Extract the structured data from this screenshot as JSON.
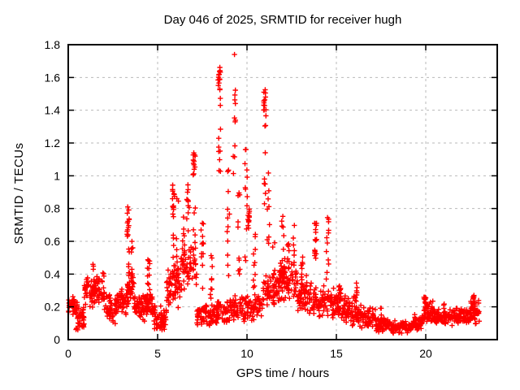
{
  "chart_data": {
    "type": "scatter",
    "title": "Day 046 of 2025, SRMTID for receiver hugh",
    "xlabel": "GPS time / hours",
    "ylabel": "SRMTID / TECUs",
    "xlim": [
      0,
      24
    ],
    "ylim": [
      0,
      1.8
    ],
    "xticks": {
      "values": [
        0,
        5,
        10,
        15,
        20
      ],
      "labels": [
        "0",
        "5",
        "10",
        "15",
        "20"
      ]
    },
    "yticks": {
      "values": [
        0,
        0.2,
        0.4,
        0.6,
        0.8,
        1.0,
        1.2,
        1.4,
        1.6,
        1.8
      ],
      "labels": [
        "0",
        "0.2",
        "0.4",
        "0.6",
        "0.8",
        "1",
        "1.2",
        "1.4",
        "1.6",
        "1.8"
      ]
    },
    "grid": true,
    "legend": "none",
    "marker": "plus",
    "colors": {
      "marker": "#ff0000",
      "grid": "#b9b9b9",
      "axis": "#000000",
      "background": "#ffffff",
      "text": "#000000"
    },
    "max_point": {
      "x": 9.3,
      "y": 1.74
    },
    "data_span_hours": [
      0,
      23.0
    ],
    "seed": 46,
    "baseline_segments": [
      [
        0.0,
        0.5,
        0.12,
        0.3,
        40
      ],
      [
        0.4,
        0.9,
        0.05,
        0.2,
        40
      ],
      [
        0.9,
        2.0,
        0.18,
        0.42,
        90
      ],
      [
        2.0,
        2.7,
        0.08,
        0.3,
        55
      ],
      [
        2.7,
        3.3,
        0.15,
        0.33,
        50
      ],
      [
        3.3,
        3.7,
        0.2,
        0.43,
        30
      ],
      [
        3.7,
        4.3,
        0.1,
        0.3,
        50
      ],
      [
        4.3,
        4.8,
        0.12,
        0.3,
        40
      ],
      [
        4.8,
        5.5,
        0.04,
        0.22,
        55
      ],
      [
        5.5,
        6.3,
        0.15,
        0.5,
        60
      ],
      [
        6.3,
        7.2,
        0.3,
        0.6,
        50
      ],
      [
        7.2,
        8.2,
        0.08,
        0.22,
        70
      ],
      [
        8.2,
        9.0,
        0.08,
        0.25,
        50
      ],
      [
        9.0,
        10.0,
        0.1,
        0.28,
        60
      ],
      [
        10.0,
        10.9,
        0.1,
        0.3,
        55
      ],
      [
        10.9,
        11.8,
        0.18,
        0.42,
        60
      ],
      [
        11.8,
        12.8,
        0.2,
        0.5,
        75
      ],
      [
        12.8,
        13.6,
        0.15,
        0.4,
        60
      ],
      [
        13.6,
        14.4,
        0.12,
        0.35,
        55
      ],
      [
        14.4,
        15.3,
        0.12,
        0.32,
        60
      ],
      [
        15.3,
        16.2,
        0.08,
        0.3,
        60
      ],
      [
        16.2,
        17.2,
        0.06,
        0.22,
        65
      ],
      [
        17.2,
        18.0,
        0.04,
        0.15,
        60
      ],
      [
        18.0,
        19.3,
        0.03,
        0.12,
        85
      ],
      [
        19.3,
        19.9,
        0.05,
        0.16,
        45
      ],
      [
        19.9,
        20.5,
        0.1,
        0.25,
        50
      ],
      [
        20.5,
        21.5,
        0.08,
        0.2,
        65
      ],
      [
        21.5,
        22.5,
        0.08,
        0.2,
        65
      ],
      [
        22.5,
        23.0,
        0.08,
        0.25,
        40
      ]
    ],
    "streaks": [
      [
        1.4,
        0.28,
        0.47,
        10,
        0
      ],
      [
        3.35,
        0.58,
        0.81,
        14,
        0
      ],
      [
        3.35,
        0.3,
        0.58,
        8,
        0
      ],
      [
        3.55,
        0.3,
        0.62,
        8,
        0
      ],
      [
        4.5,
        0.3,
        0.5,
        12,
        0
      ],
      [
        5.9,
        0.8,
        0.95,
        12,
        0
      ],
      [
        5.9,
        0.35,
        0.8,
        10,
        0
      ],
      [
        6.1,
        0.3,
        0.88,
        10,
        0
      ],
      [
        6.45,
        0.45,
        0.75,
        12,
        0
      ],
      [
        6.7,
        0.55,
        0.97,
        12,
        0
      ],
      [
        7.05,
        1.0,
        1.16,
        14,
        0
      ],
      [
        7.05,
        0.35,
        1.0,
        10,
        0
      ],
      [
        7.5,
        0.3,
        0.72,
        12,
        0
      ],
      [
        8.0,
        0.2,
        0.63,
        10,
        0
      ],
      [
        8.45,
        1.44,
        1.67,
        16,
        0
      ],
      [
        8.45,
        0.95,
        1.44,
        9,
        0
      ],
      [
        8.95,
        0.38,
        1.12,
        12,
        0
      ],
      [
        9.3,
        1.0,
        1.6,
        11,
        0
      ],
      [
        9.55,
        0.4,
        0.9,
        10,
        0
      ],
      [
        9.95,
        0.45,
        1.17,
        12,
        0
      ],
      [
        10.1,
        0.68,
        0.8,
        12,
        0
      ],
      [
        10.4,
        0.3,
        0.65,
        10,
        0
      ],
      [
        11.0,
        1.4,
        1.53,
        12,
        0
      ],
      [
        11.0,
        0.82,
        1.4,
        9,
        0
      ],
      [
        11.2,
        0.5,
        1.2,
        9,
        0
      ],
      [
        11.5,
        0.3,
        0.6,
        8,
        0
      ],
      [
        12.0,
        0.35,
        0.88,
        12,
        0
      ],
      [
        12.3,
        0.3,
        0.6,
        10,
        0
      ],
      [
        12.6,
        0.3,
        0.7,
        8,
        0
      ],
      [
        13.1,
        0.3,
        0.55,
        10,
        0
      ],
      [
        13.85,
        0.45,
        0.71,
        16,
        1
      ],
      [
        14.5,
        0.35,
        0.78,
        12,
        0
      ],
      [
        15.2,
        0.15,
        0.35,
        10,
        0
      ],
      [
        16.1,
        0.15,
        0.35,
        12,
        1
      ],
      [
        17.5,
        0.08,
        0.2,
        8,
        0
      ],
      [
        19.95,
        0.12,
        0.26,
        14,
        1
      ],
      [
        21.0,
        0.1,
        0.22,
        8,
        0
      ],
      [
        22.7,
        0.1,
        0.27,
        12,
        1
      ]
    ]
  }
}
